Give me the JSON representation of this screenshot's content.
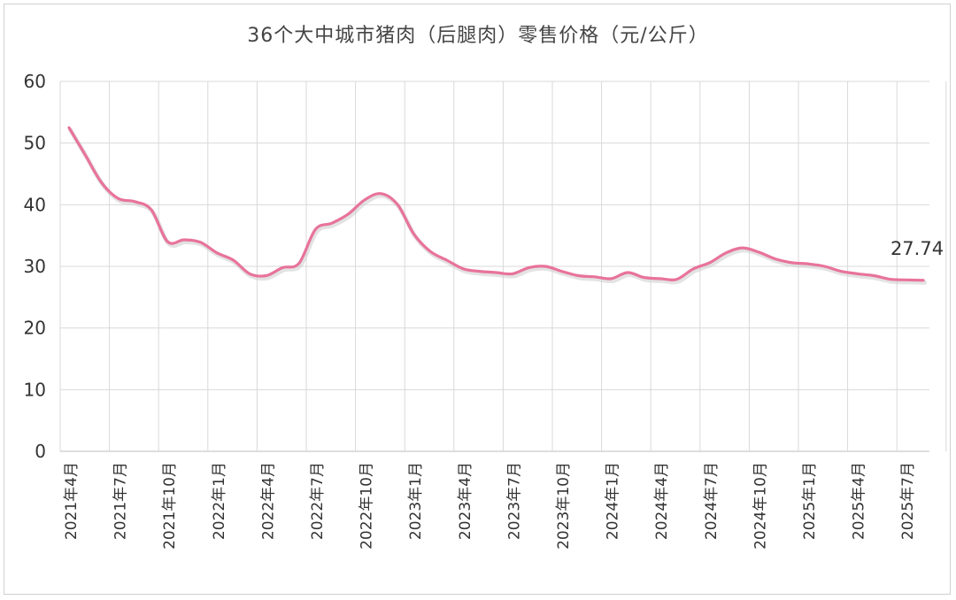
{
  "chart_data": {
    "type": "line",
    "title": "36个大中城市猪肉（后腿肉）零售价格（元/公斤）",
    "xlabel": "",
    "ylabel": "",
    "ylim": [
      0,
      60
    ],
    "yticks": [
      0,
      10,
      20,
      30,
      40,
      50,
      60
    ],
    "grid": true,
    "x_tick_labels": [
      "2021年4月",
      "2021年7月",
      "2021年10月",
      "2022年1月",
      "2022年4月",
      "2022年7月",
      "2022年10月",
      "2023年1月",
      "2023年4月",
      "2023年7月",
      "2023年10月",
      "2024年1月",
      "2024年4月",
      "2024年7月",
      "2024年10月",
      "2025年1月",
      "2025年4月",
      "2025年7月"
    ],
    "series": [
      {
        "color": "#e8739b",
        "values": [
          52.5,
          48.0,
          43.5,
          41.0,
          40.5,
          39.2,
          34.0,
          34.3,
          33.9,
          32.2,
          31.0,
          28.8,
          28.5,
          29.8,
          30.5,
          36.0,
          37.0,
          38.5,
          40.8,
          41.8,
          40.0,
          35.2,
          32.4,
          31.0,
          29.6,
          29.2,
          29.0,
          28.8,
          29.8,
          30.0,
          29.2,
          28.5,
          28.3,
          28.0,
          29.0,
          28.2,
          28.0,
          27.9,
          29.6,
          30.6,
          32.2,
          33.0,
          32.3,
          31.2,
          30.6,
          30.4,
          30.0,
          29.2,
          28.8,
          28.5,
          27.9,
          27.8,
          27.74
        ]
      }
    ],
    "annotations": [
      {
        "text": "27.74"
      }
    ]
  }
}
